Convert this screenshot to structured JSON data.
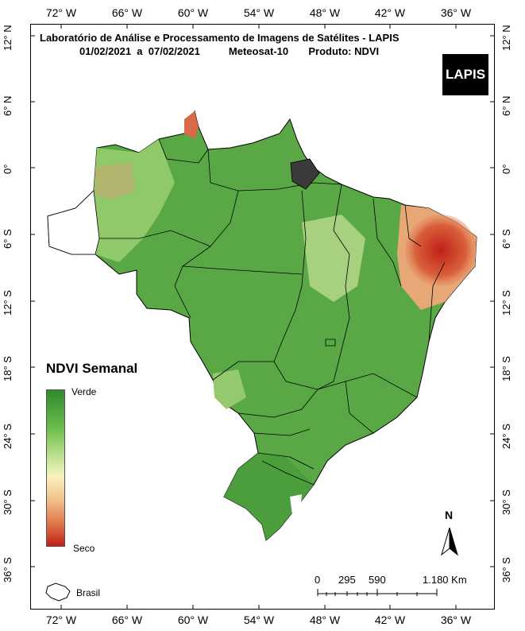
{
  "header": {
    "line1": "Laboratório de Análise e Processamento de Imagens de Satélites - LAPIS",
    "line2": "01/02/2021  a  07/02/2021          Meteosat-10       Produto: NDVI"
  },
  "logo_text": "LAPIS",
  "longitude_ticks": [
    "72° W",
    "66° W",
    "60° W",
    "54° W",
    "48° W",
    "42° W",
    "36° W"
  ],
  "latitude_ticks": [
    "12° N",
    "6° N",
    "0°",
    "6° S",
    "12° S",
    "18° S",
    "24° S",
    "30° S",
    "36° S"
  ],
  "legend": {
    "title": "NDVI Semanal",
    "top_label": "Verde",
    "bottom_label": "Seco",
    "outline_label": "Brasil"
  },
  "scale_bar": {
    "labels": [
      "0",
      "295",
      "590",
      "1.180 Km"
    ]
  },
  "north_label": "N",
  "colors": {
    "green_dark": "#2e8b2e",
    "green_light": "#7cc25a",
    "yellow": "#f6efb6",
    "dry_red": "#c0201a"
  }
}
